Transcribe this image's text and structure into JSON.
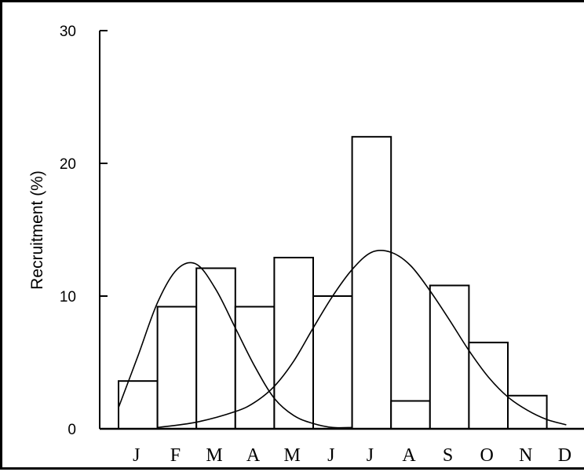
{
  "chart_data": {
    "type": "bar",
    "title": "",
    "ylabel": "Recruitment (%)",
    "xlabel": "",
    "ylim": [
      0,
      30
    ],
    "yticks": [
      0,
      10,
      20,
      30
    ],
    "categories": [
      "J",
      "F",
      "M",
      "A",
      "M",
      "J",
      "J",
      "A",
      "S",
      "O",
      "N",
      "D"
    ],
    "values": [
      3.6,
      9.2,
      12.1,
      9.2,
      12.9,
      10.0,
      22.0,
      2.1,
      10.8,
      6.5,
      2.5,
      0
    ],
    "curves": [
      {
        "x": [
          0,
          0.5,
          1,
          1.5,
          2,
          2.5,
          3,
          3.5,
          4,
          4.5,
          5,
          5.5,
          6
        ],
        "y": [
          1.6,
          5.5,
          9.5,
          12.0,
          12.4,
          10.5,
          7.6,
          4.7,
          2.3,
          1.0,
          0.4,
          0.1,
          0.1
        ]
      },
      {
        "x": [
          1,
          2,
          3,
          3.5,
          4,
          4.5,
          5,
          5.5,
          6,
          6.5,
          7,
          7.5,
          8,
          8.5,
          9,
          9.5,
          10,
          10.5,
          11,
          11.5
        ],
        "y": [
          0.1,
          0.5,
          1.3,
          2.0,
          3.2,
          5.1,
          7.6,
          10.0,
          12.0,
          13.3,
          13.3,
          12.3,
          10.4,
          8.2,
          5.9,
          3.9,
          2.4,
          1.4,
          0.7,
          0.3
        ]
      }
    ]
  }
}
